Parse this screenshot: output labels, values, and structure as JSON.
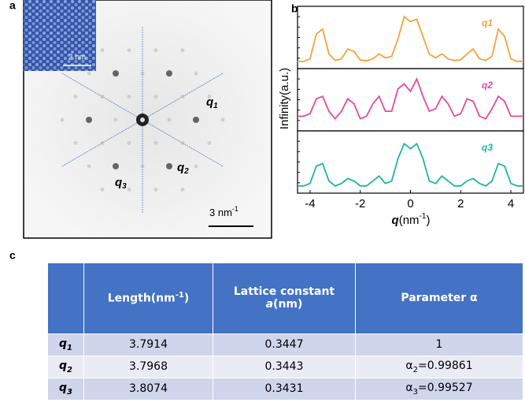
{
  "panel_a": {
    "label": "a",
    "inset_scale": "2 nm",
    "scale_bar": {
      "text": "3 nm",
      "sup": "-1"
    },
    "q_labels": [
      {
        "base": "q",
        "sub": "1"
      },
      {
        "base": "q",
        "sub": "2"
      },
      {
        "base": "q",
        "sub": "3"
      }
    ]
  },
  "panel_b_label": "b",
  "chart_data": {
    "type": "line",
    "ylabel": "Infinity(a.u.)",
    "xlabel": {
      "base": "q",
      "unit": "(nm",
      "sup": "-1",
      "close": ")"
    },
    "x": [
      -4.5,
      -4.25,
      -4.0,
      -3.75,
      -3.5,
      -3.25,
      -3.0,
      -2.75,
      -2.5,
      -2.25,
      -2.0,
      -1.75,
      -1.5,
      -1.25,
      -1.0,
      -0.75,
      -0.5,
      -0.25,
      0,
      0.25,
      0.5,
      0.75,
      1.0,
      1.25,
      1.5,
      1.75,
      2.0,
      2.25,
      2.5,
      2.75,
      3.0,
      3.25,
      3.5,
      3.75,
      4.0,
      4.25,
      4.5
    ],
    "xlim": [
      -4.5,
      4.5
    ],
    "xticks": [
      -4,
      -2,
      0,
      2,
      4
    ],
    "ylim": [
      0,
      1
    ],
    "series": [
      {
        "name": "q1",
        "color": "#f4a23a",
        "values": [
          0.05,
          0.05,
          0.1,
          0.6,
          0.7,
          0.2,
          0.07,
          0.1,
          0.3,
          0.25,
          0.08,
          0.06,
          0.1,
          0.2,
          0.12,
          0.15,
          0.5,
          0.95,
          0.85,
          0.9,
          0.55,
          0.2,
          0.12,
          0.2,
          0.1,
          0.07,
          0.08,
          0.2,
          0.3,
          0.1,
          0.07,
          0.15,
          0.7,
          0.55,
          0.1,
          0.05,
          0.05
        ]
      },
      {
        "name": "q2",
        "color": "#e8489a",
        "values": [
          0.2,
          0.2,
          0.25,
          0.55,
          0.6,
          0.3,
          0.15,
          0.3,
          0.55,
          0.45,
          0.15,
          0.2,
          0.45,
          0.6,
          0.3,
          0.3,
          0.75,
          0.85,
          0.7,
          0.95,
          0.6,
          0.3,
          0.35,
          0.6,
          0.45,
          0.2,
          0.25,
          0.55,
          0.5,
          0.2,
          0.15,
          0.35,
          0.6,
          0.5,
          0.2,
          0.2,
          0.2
        ]
      },
      {
        "name": "q3",
        "color": "#1fb3a6",
        "values": [
          0.05,
          0.05,
          0.1,
          0.45,
          0.5,
          0.15,
          0.05,
          0.1,
          0.2,
          0.15,
          0.05,
          0.05,
          0.15,
          0.25,
          0.1,
          0.15,
          0.6,
          0.9,
          0.8,
          0.9,
          0.6,
          0.15,
          0.1,
          0.25,
          0.15,
          0.05,
          0.05,
          0.15,
          0.2,
          0.1,
          0.05,
          0.15,
          0.5,
          0.45,
          0.1,
          0.05,
          0.05
        ]
      }
    ]
  },
  "table": {
    "label": "c",
    "header": [
      {
        "text": "Length(nm",
        "sup": "-1",
        "close": ")"
      },
      {
        "text": "Lattice constant",
        "italic": "a",
        "rest": "(nm)"
      },
      "Parameter α"
    ],
    "rows": [
      [
        {
          "base": "q",
          "sub": "1"
        },
        "3.7914",
        "0.3447",
        {
          "rest": "1"
        }
      ],
      [
        {
          "base": "q",
          "sub": "2"
        },
        "3.7968",
        "0.3443",
        {
          "base": "α",
          "sub": "2",
          "rest": "=0.99861"
        }
      ],
      [
        {
          "base": "q",
          "sub": "3"
        },
        "3.8074",
        "0.3431",
        {
          "base": "α",
          "sub": "3",
          "rest": "=0.99527"
        }
      ]
    ]
  }
}
